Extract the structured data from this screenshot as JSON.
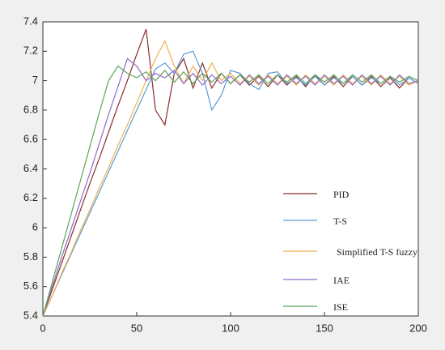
{
  "chart_data": {
    "type": "line",
    "x": [
      0,
      5,
      10,
      15,
      20,
      25,
      30,
      35,
      40,
      45,
      50,
      55,
      60,
      65,
      70,
      75,
      80,
      85,
      90,
      95,
      100,
      105,
      110,
      115,
      120,
      125,
      130,
      135,
      140,
      145,
      150,
      155,
      160,
      165,
      170,
      175,
      180,
      185,
      190,
      195,
      200
    ],
    "series": [
      {
        "name": "PID",
        "color": "#8b2c2c",
        "values": [
          5.4,
          5.58,
          5.76,
          5.94,
          6.12,
          6.3,
          6.47,
          6.65,
          6.83,
          7.0,
          7.18,
          7.35,
          6.8,
          6.7,
          7.05,
          7.15,
          6.95,
          7.12,
          6.95,
          7.05,
          6.98,
          7.04,
          6.97,
          7.03,
          6.96,
          7.04,
          6.97,
          7.03,
          6.96,
          7.04,
          6.97,
          7.03,
          6.96,
          7.03,
          6.97,
          7.03,
          6.96,
          7.02,
          6.95,
          7.02,
          6.98
        ]
      },
      {
        "name": "T-S",
        "color": "#5b9bd5",
        "values": [
          5.4,
          5.54,
          5.68,
          5.82,
          5.96,
          6.1,
          6.24,
          6.38,
          6.52,
          6.66,
          6.8,
          6.94,
          7.08,
          7.12,
          7.05,
          7.18,
          7.2,
          7.05,
          6.8,
          6.9,
          7.07,
          7.05,
          6.98,
          6.94,
          7.05,
          7.06,
          6.98,
          7.02,
          6.97,
          7.03,
          6.97,
          7.02,
          6.98,
          7.03,
          6.97,
          7.02,
          6.98,
          7.03,
          6.97,
          7.02,
          6.98
        ]
      },
      {
        "name": "Simplified T-S fuzzy",
        "color": "#f0b050",
        "values": [
          5.4,
          5.54,
          5.69,
          5.83,
          5.98,
          6.12,
          6.27,
          6.41,
          6.56,
          6.7,
          6.85,
          7.0,
          7.15,
          7.27,
          7.1,
          6.98,
          7.1,
          7.0,
          7.12,
          7.0,
          7.05,
          6.98,
          7.03,
          6.97,
          7.04,
          6.98,
          7.03,
          6.97,
          7.04,
          6.98,
          7.03,
          6.97,
          7.04,
          6.98,
          7.03,
          6.97,
          7.04,
          6.98,
          7.03,
          6.97,
          7.0
        ]
      },
      {
        "name": "IAE",
        "color": "#8e6ac8",
        "values": [
          5.4,
          5.6,
          5.8,
          5.99,
          6.18,
          6.37,
          6.57,
          6.77,
          6.96,
          7.15,
          7.1,
          7.0,
          7.05,
          7.02,
          7.07,
          6.98,
          7.05,
          6.97,
          7.04,
          6.98,
          7.03,
          6.97,
          7.04,
          6.98,
          7.03,
          6.97,
          7.04,
          6.98,
          7.03,
          6.97,
          7.04,
          6.98,
          7.03,
          6.97,
          7.04,
          6.98,
          7.03,
          6.97,
          7.04,
          6.98,
          7.0
        ]
      },
      {
        "name": "ISE",
        "color": "#5aa55a",
        "values": [
          5.4,
          5.63,
          5.86,
          6.09,
          6.32,
          6.55,
          6.78,
          7.0,
          7.1,
          7.05,
          7.02,
          7.06,
          7.0,
          7.07,
          6.99,
          7.06,
          6.98,
          7.05,
          6.99,
          7.05,
          6.98,
          7.04,
          6.99,
          7.04,
          6.98,
          7.04,
          6.99,
          7.04,
          6.98,
          7.04,
          6.99,
          7.04,
          6.98,
          7.04,
          6.99,
          7.04,
          6.98,
          7.03,
          6.99,
          7.03,
          7.0
        ]
      }
    ],
    "xlim": [
      0,
      200
    ],
    "xticks": [
      0,
      50,
      100,
      150,
      200
    ],
    "ylim": [
      5.4,
      7.4
    ],
    "yticks": [
      5.4,
      5.6,
      5.8,
      6,
      6.2,
      6.4,
      6.6,
      6.8,
      7,
      7.2,
      7.4
    ]
  }
}
